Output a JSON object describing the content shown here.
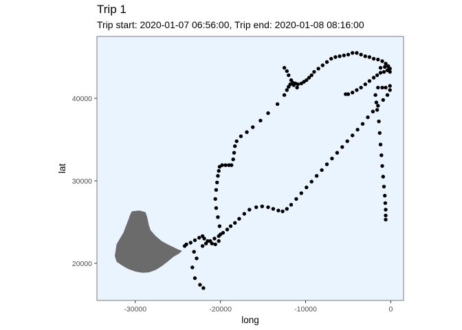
{
  "title": "Trip 1",
  "subtitle": "Trip start: 2020-01-07 06:56:00, Trip end: 2020-01-08 08:16:00",
  "colors": {
    "panel": "#eaf4fe",
    "border": "#7a7a7a",
    "island": "#6b6b6b",
    "points": "#000000"
  },
  "chart_data": {
    "type": "scatter",
    "title": "Trip 1",
    "subtitle": "Trip start: 2020-01-07 06:56:00, Trip end: 2020-01-08 08:16:00",
    "xlabel": "long",
    "ylabel": "lat",
    "xlim": [
      -34500,
      1500
    ],
    "ylim": [
      15500,
      47500
    ],
    "x_ticks": [
      -30000,
      -20000,
      -10000,
      0
    ],
    "x_tick_labels": [
      "-30000",
      "-20000",
      "-10000",
      "0"
    ],
    "y_ticks": [
      20000,
      30000,
      40000
    ],
    "y_tick_labels": [
      "20000",
      "30000",
      "40000"
    ],
    "grid": false,
    "legend": "none",
    "background_shape": {
      "name": "island",
      "polygon": [
        [
          -30400,
          26300
        ],
        [
          -29500,
          26400
        ],
        [
          -28800,
          26200
        ],
        [
          -28600,
          25600
        ],
        [
          -28400,
          24600
        ],
        [
          -28200,
          24000
        ],
        [
          -27600,
          23300
        ],
        [
          -26900,
          22700
        ],
        [
          -26200,
          22300
        ],
        [
          -25600,
          22000
        ],
        [
          -25000,
          21700
        ],
        [
          -24500,
          21500
        ],
        [
          -24900,
          21150
        ],
        [
          -25500,
          20800
        ],
        [
          -26200,
          20200
        ],
        [
          -26900,
          19650
        ],
        [
          -27600,
          19200
        ],
        [
          -28400,
          18900
        ],
        [
          -29200,
          18850
        ],
        [
          -30000,
          19000
        ],
        [
          -30800,
          19300
        ],
        [
          -31500,
          19700
        ],
        [
          -32200,
          20200
        ],
        [
          -32400,
          20900
        ],
        [
          -32300,
          21600
        ],
        [
          -32200,
          22300
        ],
        [
          -31800,
          23000
        ],
        [
          -31400,
          23700
        ],
        [
          -31100,
          24500
        ],
        [
          -30800,
          25300
        ],
        [
          -30600,
          25900
        ]
      ]
    },
    "series": [
      {
        "points": [
          [
            -22000,
            17000
          ],
          [
            -22400,
            17400
          ],
          [
            -23000,
            18200
          ],
          [
            -23300,
            19500
          ],
          [
            -22800,
            20600
          ],
          [
            -23100,
            21400
          ],
          [
            -22100,
            22100
          ],
          [
            -21700,
            22400
          ],
          [
            -21200,
            22700
          ],
          [
            -20700,
            23000
          ],
          [
            -20200,
            23300
          ],
          [
            -19700,
            23700
          ],
          [
            -19200,
            24100
          ],
          [
            -18800,
            24500
          ],
          [
            -18300,
            24900
          ],
          [
            -17800,
            25400
          ],
          [
            -17200,
            26000
          ],
          [
            -16600,
            26500
          ],
          [
            -15800,
            26800
          ],
          [
            -15100,
            26900
          ],
          [
            -14400,
            26800
          ],
          [
            -13800,
            26600
          ],
          [
            -13200,
            26400
          ],
          [
            -12700,
            26300
          ],
          [
            -12200,
            26600
          ],
          [
            -11700,
            27100
          ],
          [
            -11100,
            27800
          ],
          [
            -10500,
            28500
          ],
          [
            -9900,
            29200
          ],
          [
            -9300,
            29900
          ],
          [
            -8700,
            30600
          ],
          [
            -8100,
            31300
          ],
          [
            -7500,
            32000
          ],
          [
            -6900,
            32700
          ],
          [
            -6300,
            33400
          ],
          [
            -5700,
            34100
          ],
          [
            -5100,
            34800
          ],
          [
            -4500,
            35500
          ],
          [
            -3900,
            36200
          ],
          [
            -3300,
            36900
          ],
          [
            -2700,
            37700
          ],
          [
            -2100,
            38400
          ],
          [
            -1500,
            39100
          ],
          [
            -900,
            39800
          ],
          [
            -400,
            40400
          ],
          [
            -100,
            41000
          ],
          [
            -100,
            41500
          ],
          [
            -100,
            43200
          ],
          [
            -100,
            43600
          ]
        ]
      },
      {
        "points": [
          [
            -24200,
            22100
          ],
          [
            -24000,
            22300
          ],
          [
            -23500,
            22500
          ],
          [
            -23000,
            22800
          ],
          [
            -22500,
            23100
          ],
          [
            -22100,
            23300
          ],
          [
            -21900,
            23000
          ],
          [
            -21500,
            22700
          ],
          [
            -21000,
            22400
          ],
          [
            -20600,
            22300
          ],
          [
            -20200,
            22700
          ],
          [
            -20000,
            23500
          ],
          [
            -20100,
            24500
          ],
          [
            -20300,
            25600
          ],
          [
            -20500,
            26700
          ],
          [
            -20600,
            27800
          ],
          [
            -20500,
            28900
          ],
          [
            -20400,
            29800
          ],
          [
            -20300,
            30600
          ],
          [
            -20200,
            31200
          ],
          [
            -20100,
            31700
          ],
          [
            -19800,
            31900
          ],
          [
            -19400,
            31900
          ],
          [
            -19000,
            31900
          ],
          [
            -18700,
            31900
          ],
          [
            -18500,
            32600
          ],
          [
            -18400,
            33400
          ],
          [
            -18300,
            34200
          ],
          [
            -18100,
            34800
          ],
          [
            -17600,
            35400
          ],
          [
            -16900,
            35900
          ],
          [
            -16200,
            36500
          ],
          [
            -15300,
            37300
          ],
          [
            -14400,
            38200
          ],
          [
            -13300,
            39300
          ],
          [
            -12500,
            40400
          ],
          [
            -12200,
            41000
          ],
          [
            -12000,
            41400
          ],
          [
            -11800,
            41700
          ],
          [
            -11500,
            41900
          ],
          [
            -11200,
            41800
          ],
          [
            -10900,
            41700
          ],
          [
            -10500,
            41800
          ],
          [
            -10200,
            42000
          ],
          [
            -9900,
            42200
          ],
          [
            -9600,
            42500
          ],
          [
            -9300,
            42800
          ],
          [
            -9000,
            43200
          ],
          [
            -8500,
            43600
          ],
          [
            -8000,
            44000
          ],
          [
            -7500,
            44400
          ],
          [
            -7000,
            44800
          ],
          [
            -6500,
            45000
          ],
          [
            -6000,
            45100
          ],
          [
            -5500,
            45200
          ],
          [
            -5000,
            45300
          ],
          [
            -4500,
            45500
          ],
          [
            -4000,
            45500
          ],
          [
            -3500,
            45300
          ],
          [
            -3000,
            45100
          ],
          [
            -2500,
            45000
          ],
          [
            -2000,
            44800
          ],
          [
            -1500,
            44700
          ],
          [
            -1000,
            44500
          ],
          [
            -600,
            44200
          ],
          [
            -300,
            43900
          ],
          [
            -200,
            43600
          ],
          [
            -400,
            43400
          ],
          [
            -800,
            43200
          ],
          [
            -1200,
            43100
          ],
          [
            -1600,
            42800
          ],
          [
            -2000,
            42500
          ],
          [
            -2500,
            42100
          ],
          [
            -3000,
            41700
          ],
          [
            -3500,
            41300
          ],
          [
            -4000,
            41000
          ],
          [
            -4500,
            40700
          ],
          [
            -5000,
            40500
          ],
          [
            -5300,
            40500
          ],
          [
            -1800,
            40400
          ],
          [
            -1700,
            39500
          ],
          [
            -1600,
            38600
          ],
          [
            -1400,
            37200
          ],
          [
            -1300,
            35800
          ],
          [
            -1200,
            34400
          ],
          [
            -1100,
            33100
          ],
          [
            -1000,
            31800
          ],
          [
            -900,
            30500
          ],
          [
            -800,
            29300
          ],
          [
            -700,
            28200
          ],
          [
            -650,
            27300
          ],
          [
            -600,
            26500
          ],
          [
            -600,
            25800
          ],
          [
            -600,
            25300
          ],
          [
            -12500,
            43700
          ],
          [
            -12200,
            43300
          ],
          [
            -12000,
            42800
          ],
          [
            -11700,
            42200
          ],
          [
            -11400,
            41600
          ],
          [
            -11000,
            41300
          ],
          [
            -1500,
            41300
          ],
          [
            -1000,
            41300
          ],
          [
            -600,
            41300
          ],
          [
            -1200,
            43700
          ],
          [
            -700,
            43800
          ]
        ]
      }
    ]
  }
}
